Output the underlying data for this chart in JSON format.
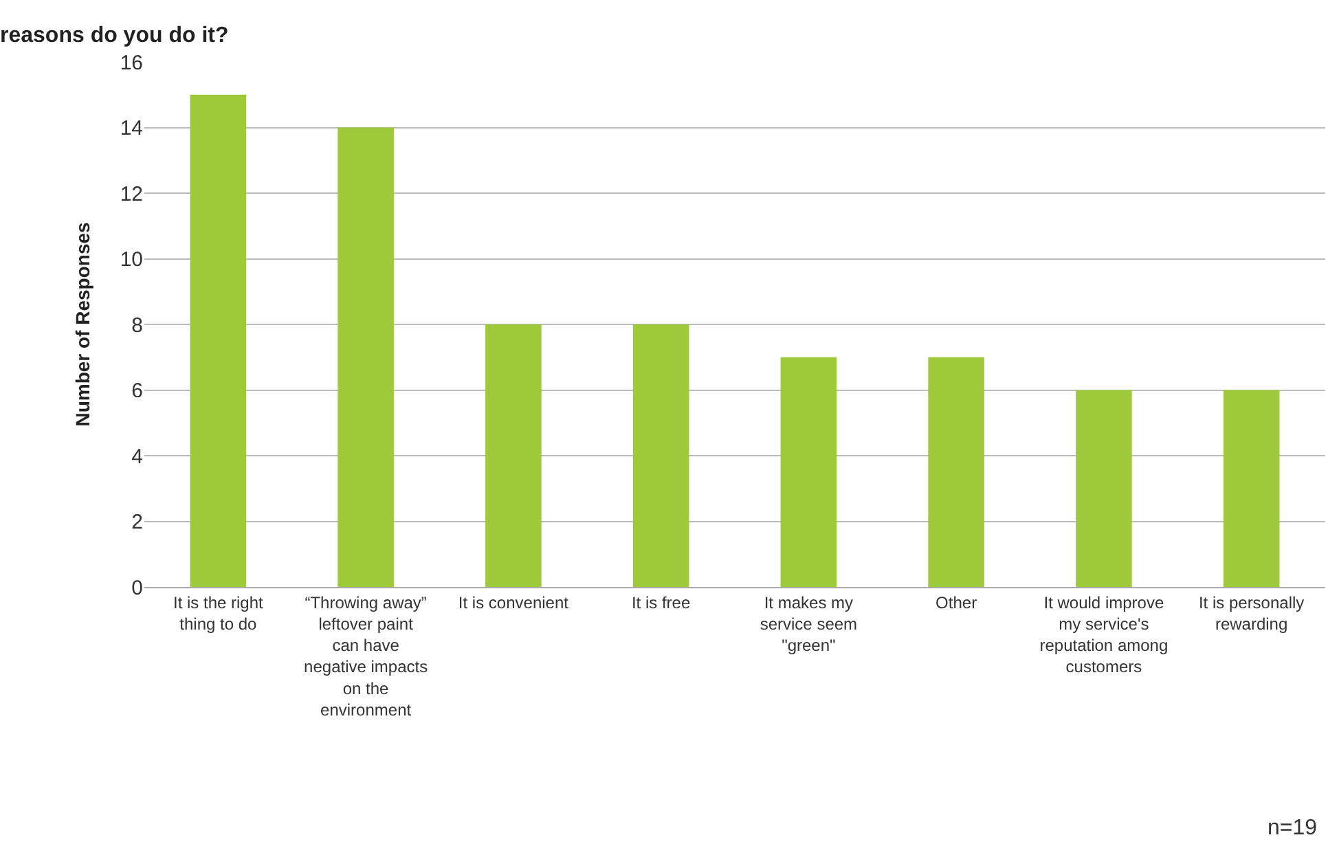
{
  "chart_data": {
    "type": "bar",
    "title": "reasons do you do it?",
    "ylabel": "Number of Responses",
    "categories": [
      "It is the right thing to do",
      "“Throwing away” leftover paint can have negative impacts on the environment",
      "It is convenient",
      "It is free",
      "It makes my service seem \"green\"",
      "Other",
      "It would improve my service's reputation among customers",
      "It is personally rewarding"
    ],
    "values": [
      15,
      14,
      8,
      8,
      7,
      7,
      6,
      6
    ],
    "color": "#9dc93a",
    "ylim": [
      0,
      16
    ],
    "yticks": [
      0,
      2,
      4,
      6,
      8,
      10,
      12,
      14,
      16
    ],
    "grid": "y",
    "annotations": [
      "n=19"
    ]
  }
}
